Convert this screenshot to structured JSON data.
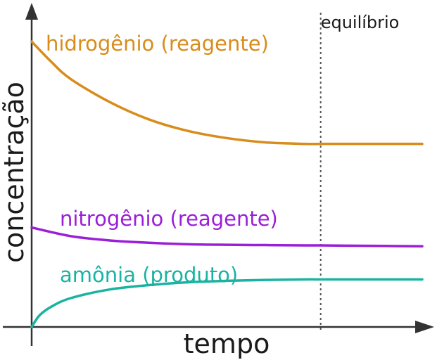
{
  "chart_data": {
    "type": "line",
    "title": "",
    "xlabel": "tempo",
    "ylabel": "concentração",
    "grid": false,
    "legend": "inline labels",
    "xlim": [
      0,
      1
    ],
    "ylim": [
      0,
      1
    ],
    "annotation": {
      "label": "equilíbrio",
      "x": 0.74
    },
    "series": [
      {
        "name": "hidrogênio (reagente)",
        "color": "#d88c1c",
        "x": [
          0,
          0.05,
          0.1,
          0.2,
          0.3,
          0.4,
          0.5,
          0.6,
          0.7,
          0.74,
          0.8,
          0.9,
          1.0
        ],
        "y": [
          0.99,
          0.92,
          0.86,
          0.78,
          0.72,
          0.68,
          0.655,
          0.64,
          0.635,
          0.635,
          0.635,
          0.635,
          0.635
        ]
      },
      {
        "name": "nitrogênio (reagente)",
        "color": "#9a1fd8",
        "x": [
          0,
          0.1,
          0.2,
          0.3,
          0.4,
          0.5,
          0.6,
          0.7,
          0.74,
          0.8,
          0.9,
          1.0
        ],
        "y": [
          0.345,
          0.315,
          0.3,
          0.292,
          0.287,
          0.285,
          0.284,
          0.283,
          0.283,
          0.282,
          0.281,
          0.28
        ]
      },
      {
        "name": "amônia (produto)",
        "color": "#1ab3a2",
        "x": [
          0,
          0.02,
          0.05,
          0.1,
          0.2,
          0.3,
          0.4,
          0.5,
          0.6,
          0.7,
          0.74,
          0.8,
          0.9,
          1.0
        ],
        "y": [
          0.0,
          0.04,
          0.07,
          0.1,
          0.13,
          0.145,
          0.155,
          0.16,
          0.163,
          0.165,
          0.165,
          0.165,
          0.165,
          0.165
        ]
      }
    ]
  }
}
